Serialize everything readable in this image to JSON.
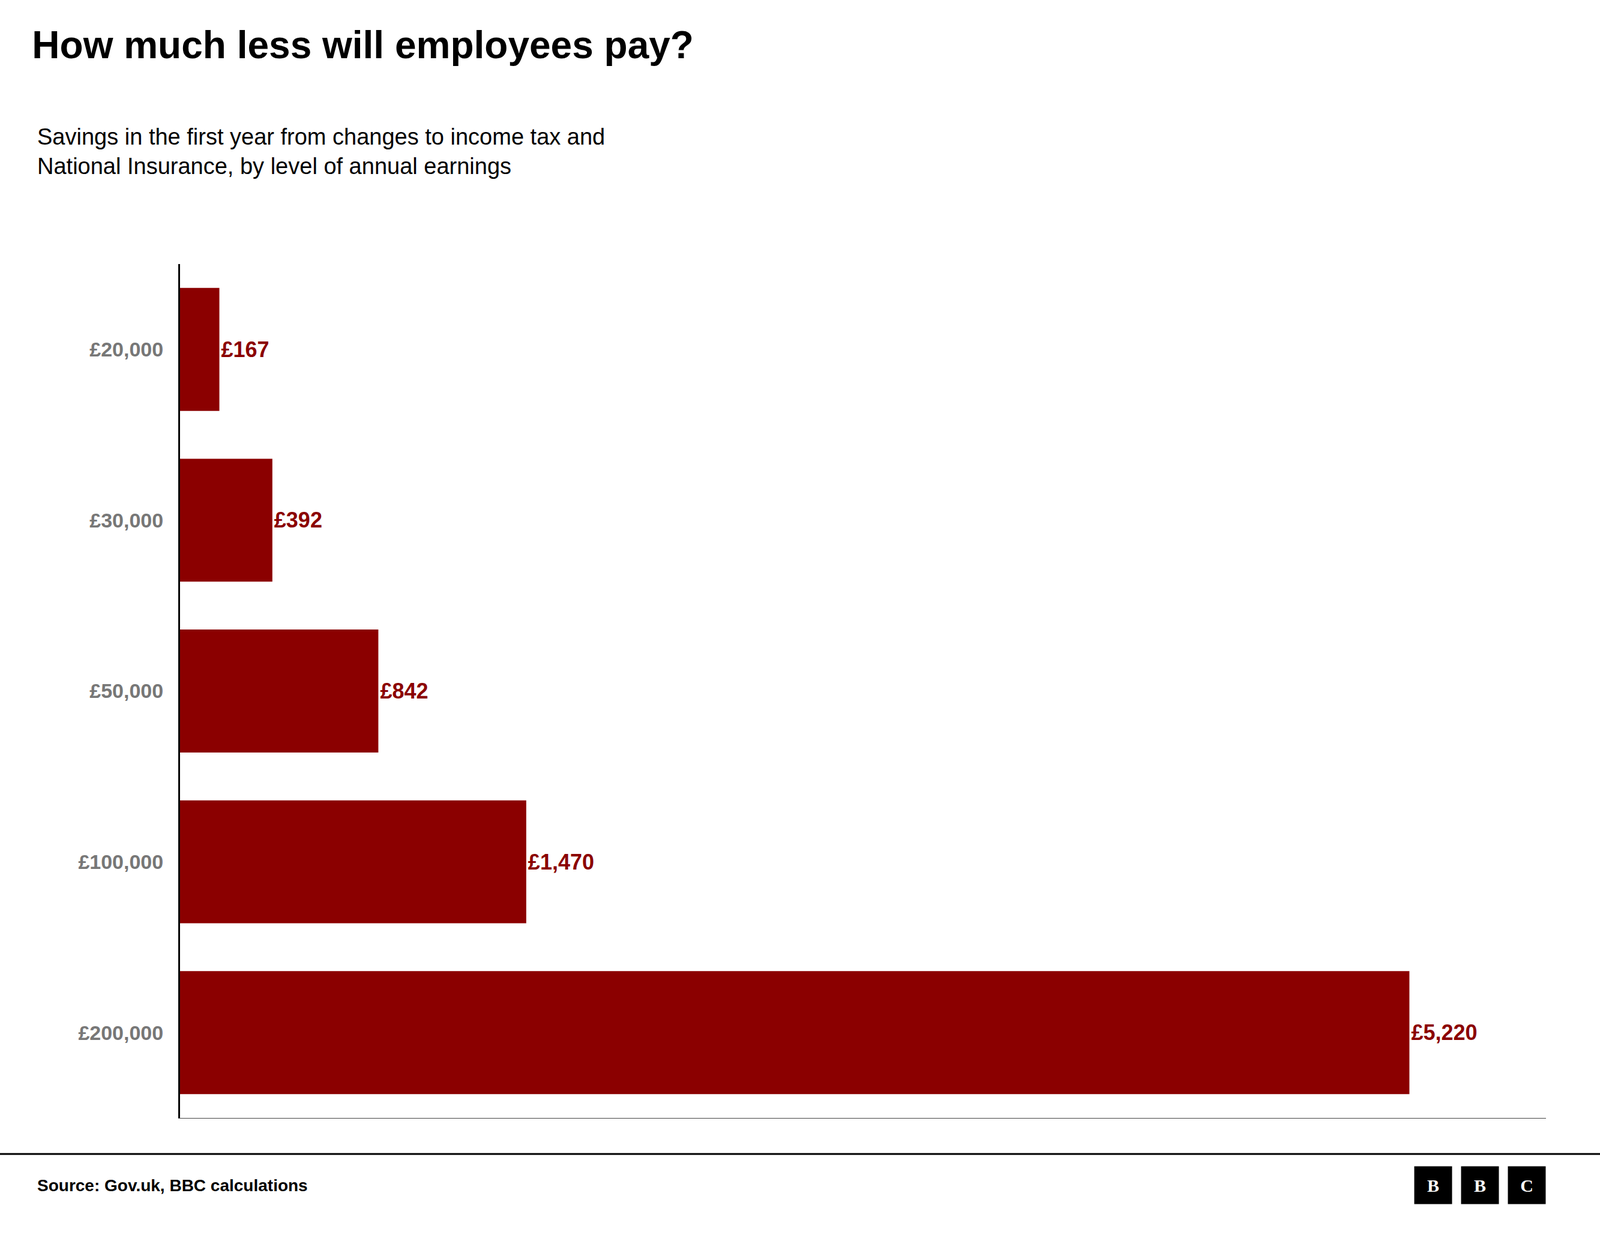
{
  "chart_data": {
    "type": "bar",
    "orientation": "horizontal",
    "title": "How much less will employees pay?",
    "subtitle": [
      "Savings in the first year from changes to income tax and",
      "National Insurance, by level of annual earnings"
    ],
    "categories": [
      "£20,000",
      "£30,000",
      "£50,000",
      "£100,000",
      "£200,000"
    ],
    "values": [
      167,
      392,
      842,
      1470,
      5220
    ],
    "value_labels": [
      "£167",
      "£392",
      "£842",
      "£1,470",
      "£5,220"
    ],
    "data_labels": true,
    "color": "#8B0000",
    "xlim": [
      0,
      5800
    ],
    "grid": false,
    "tick_labels": "y",
    "source": "Source: Gov.uk, BBC calculations",
    "logo": [
      "B",
      "B",
      "C"
    ]
  }
}
